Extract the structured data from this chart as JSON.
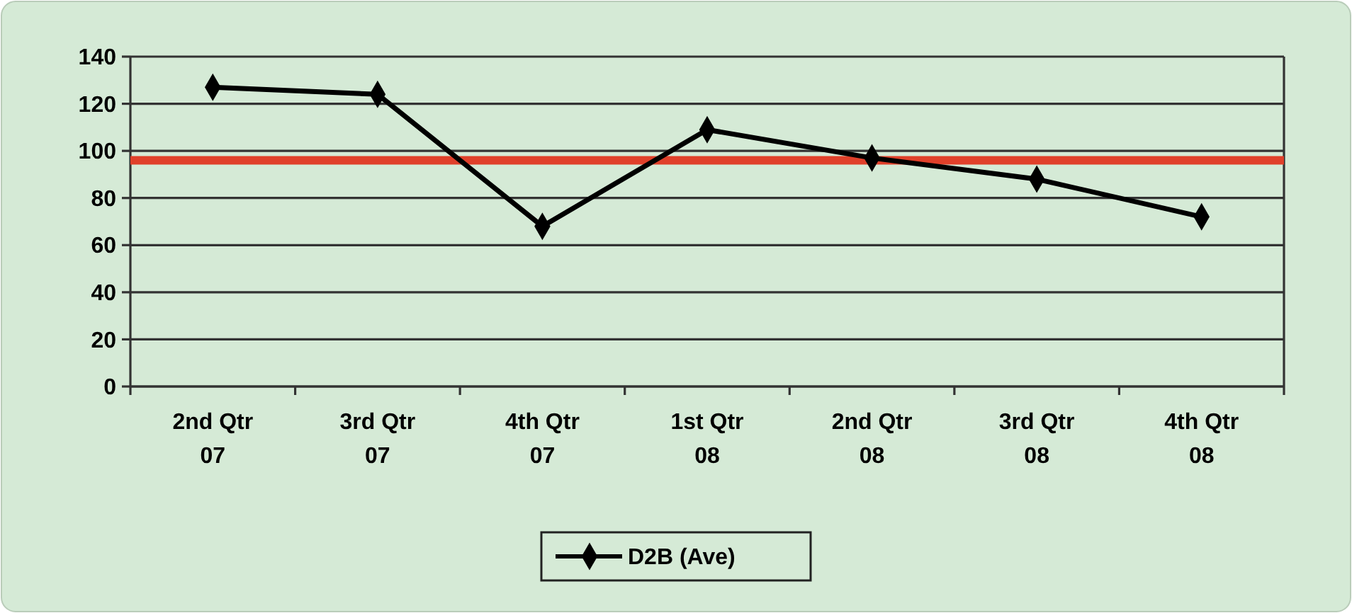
{
  "chart_data": {
    "type": "line",
    "categories": [
      "2nd Qtr\n07",
      "3rd Qtr\n07",
      "4th Qtr\n07",
      "1st Qtr\n08",
      "2nd Qtr\n08",
      "3rd Qtr\n08",
      "4th Qtr\n08"
    ],
    "series": [
      {
        "name": "D2B (Ave)",
        "color": "#000000",
        "values": [
          127,
          124,
          68,
          109,
          97,
          88,
          72
        ]
      }
    ],
    "ylim": [
      0,
      140
    ],
    "yticks": [
      0,
      20,
      40,
      60,
      80,
      100,
      120,
      140
    ],
    "grid": "y",
    "legend": "bottom",
    "marker": "diamond",
    "line_style": "solid",
    "ref_lines": [
      {
        "axis": "y",
        "value": 96,
        "color": "#e0402a"
      }
    ]
  }
}
